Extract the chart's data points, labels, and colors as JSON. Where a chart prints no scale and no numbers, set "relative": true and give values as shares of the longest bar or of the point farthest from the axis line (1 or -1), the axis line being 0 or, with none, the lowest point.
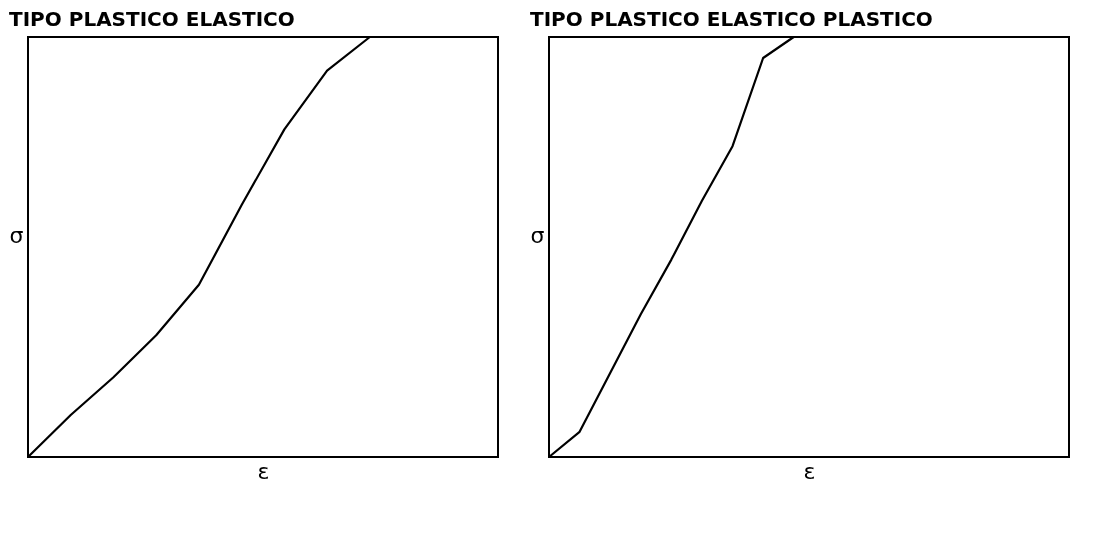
{
  "chart_data": [
    {
      "type": "line",
      "title": "TIPO PLASTICO ELASTICO",
      "xlabel": "ε",
      "ylabel": "σ",
      "relative": true,
      "categories": [
        null,
        null,
        null,
        null,
        null,
        null,
        null,
        null,
        null,
        null,
        null,
        null
      ],
      "series": [
        {
          "color": "#000000",
          "values": [
            0,
            0.1,
            0.19,
            0.29,
            0.41,
            0.6,
            0.78,
            0.92,
            1,
            null,
            null,
            null
          ]
        }
      ]
    },
    {
      "type": "line",
      "title": "TIPO PLASTICO ELASTICO PLASTICO",
      "xlabel": "ε",
      "ylabel": "σ",
      "relative": true,
      "categories": [
        null,
        null,
        null,
        null,
        null,
        null,
        null,
        null,
        null,
        null,
        null,
        null,
        null,
        null,
        null,
        null,
        null,
        null
      ],
      "series": [
        {
          "color": "#000000",
          "values": [
            0,
            0.06,
            0.2,
            0.34,
            0.47,
            0.61,
            0.74,
            0.95,
            1,
            null,
            null,
            null,
            null,
            null,
            null,
            null,
            null,
            null
          ]
        }
      ]
    }
  ]
}
